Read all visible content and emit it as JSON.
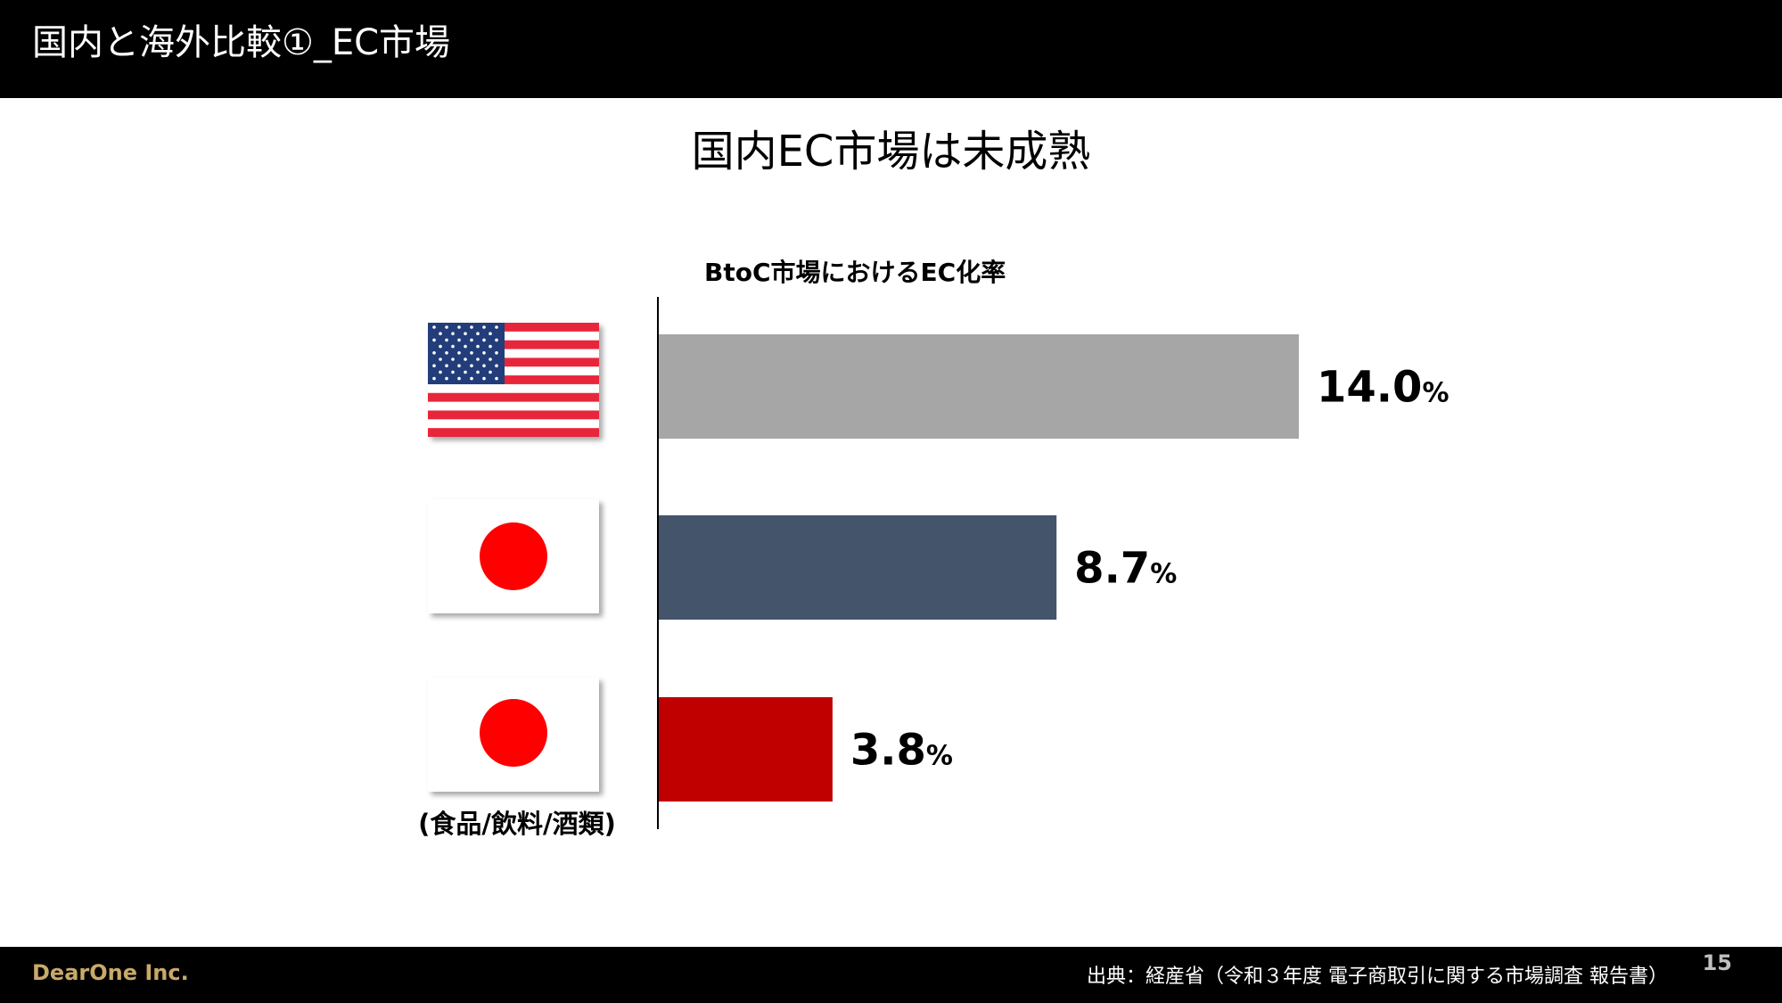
{
  "header": {
    "title": "国内と海外比較①_EC市場"
  },
  "slide": {
    "heading": "国内EC市場は未成熟"
  },
  "colors": {
    "us_bar": "#a6a6a6",
    "japan_bar": "#44546a",
    "food_bar": "#c00000",
    "flag_red": "#ff0000"
  },
  "chart_data": {
    "type": "bar",
    "orientation": "horizontal",
    "title": "BtoC市場におけるEC化率",
    "categories": [
      "us-flag-icon",
      "japan-flag-icon",
      "(食品/飲料/酒類)"
    ],
    "values": [
      14.0,
      8.7,
      3.8
    ],
    "value_labels": [
      "14.0",
      "8.7",
      "3.8"
    ],
    "unit": "%",
    "xlim": [
      0,
      14.0
    ],
    "grid": false
  },
  "footer": {
    "company": "DearOne Inc.",
    "source": "出典：経産省（令和３年度 電子商取引に関する市場調査 報告書）",
    "page": "15"
  }
}
